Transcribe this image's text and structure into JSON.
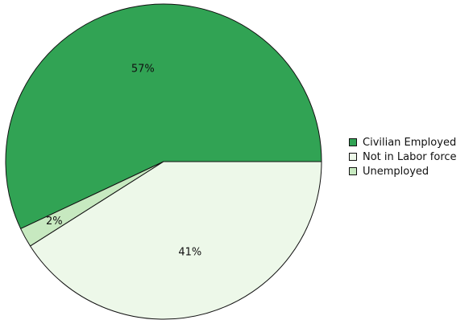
{
  "chart_data": {
    "type": "pie",
    "title": "",
    "slices": [
      {
        "label": "Civilian Employed",
        "value": 57,
        "display": "57%",
        "color": "#31a354"
      },
      {
        "label": "Unemployed",
        "value": 2,
        "display": "2%",
        "color": "#c7e9c0"
      },
      {
        "label": "Not in Labor force",
        "value": 41,
        "display": "41%",
        "color": "#edf8e9"
      }
    ],
    "legend": {
      "position": "right",
      "order": [
        "Civilian Employed",
        "Not in Labor force",
        "Unemployed"
      ]
    }
  }
}
